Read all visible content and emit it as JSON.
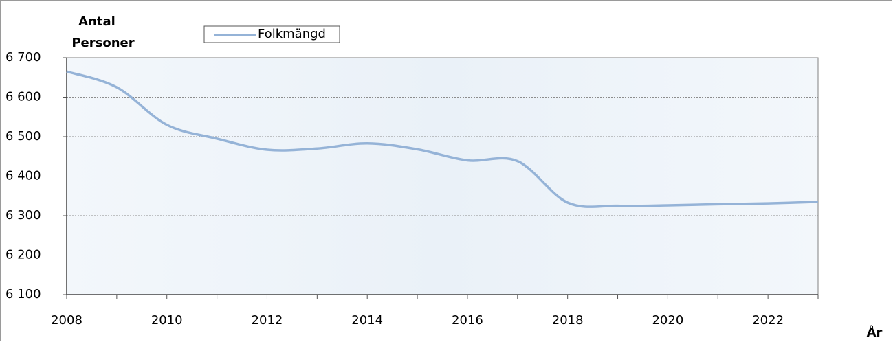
{
  "chart_data": {
    "type": "line",
    "y_label_lines": [
      "Antal",
      "Personer"
    ],
    "x_label": "År",
    "x": [
      2008,
      2009,
      2010,
      2011,
      2012,
      2013,
      2014,
      2015,
      2016,
      2017,
      2018,
      2019,
      2020,
      2021,
      2022,
      2023
    ],
    "series": [
      {
        "name": "Folkmängd",
        "color": "#95b3d7",
        "values": [
          6665,
          6625,
          6530,
          6495,
          6467,
          6470,
          6483,
          6468,
          6440,
          6438,
          6333,
          6325,
          6326,
          6329,
          6331,
          6335
        ]
      }
    ],
    "xlim": [
      2008,
      2023
    ],
    "xticks": [
      2008,
      2010,
      2012,
      2014,
      2016,
      2018,
      2020,
      2022
    ],
    "xminorticks": [
      2009,
      2011,
      2013,
      2015,
      2017,
      2019,
      2021,
      2023
    ],
    "ylim": [
      6100,
      6700
    ],
    "yticks": [
      {
        "value": 6100,
        "label": "6 100"
      },
      {
        "value": 6200,
        "label": "6 200"
      },
      {
        "value": 6300,
        "label": "6 300"
      },
      {
        "value": 6400,
        "label": "6 400"
      },
      {
        "value": 6500,
        "label": "6 500"
      },
      {
        "value": 6600,
        "label": "6 600"
      },
      {
        "value": 6700,
        "label": "6 700"
      }
    ],
    "grid": true,
    "legend": "top-left"
  }
}
